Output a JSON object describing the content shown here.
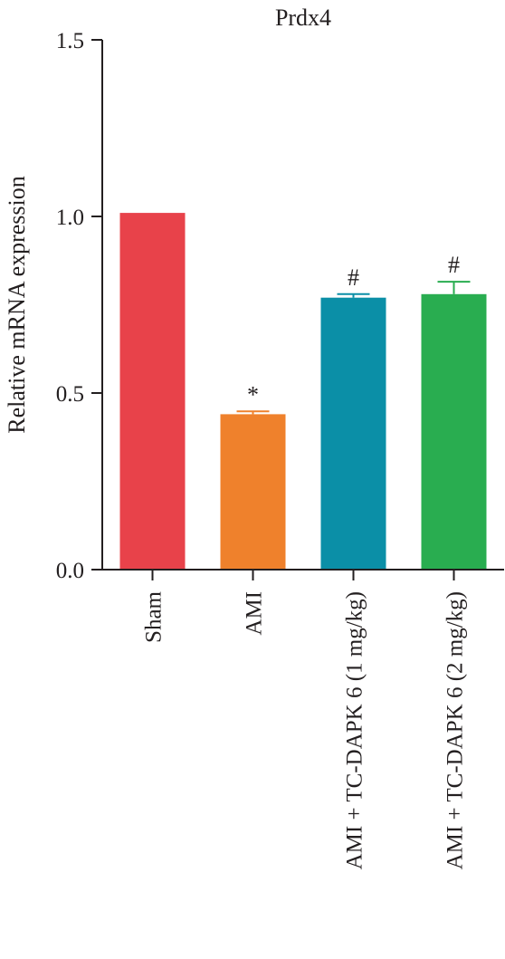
{
  "chart_data": {
    "type": "bar",
    "title": "Prdx4",
    "xlabel": "",
    "ylabel": "Relative mRNA expression",
    "ylim": [
      0,
      1.5
    ],
    "yticks": [
      "0.0",
      "0.5",
      "1.0",
      "1.5"
    ],
    "categories": [
      "Sham",
      "AMI",
      "AMI + TC-DAPK 6 (1 mg/kg)",
      "AMI + TC-DAPK 6 (2 mg/kg)"
    ],
    "values": [
      1.01,
      0.44,
      0.77,
      0.78
    ],
    "errors": [
      0.0,
      0.008,
      0.01,
      0.035
    ],
    "significance": [
      "",
      "*",
      "#",
      "#"
    ],
    "colors": [
      "#e8424a",
      "#ef812c",
      "#0b8fa7",
      "#29ad50"
    ],
    "grid": false,
    "legend": "none"
  }
}
